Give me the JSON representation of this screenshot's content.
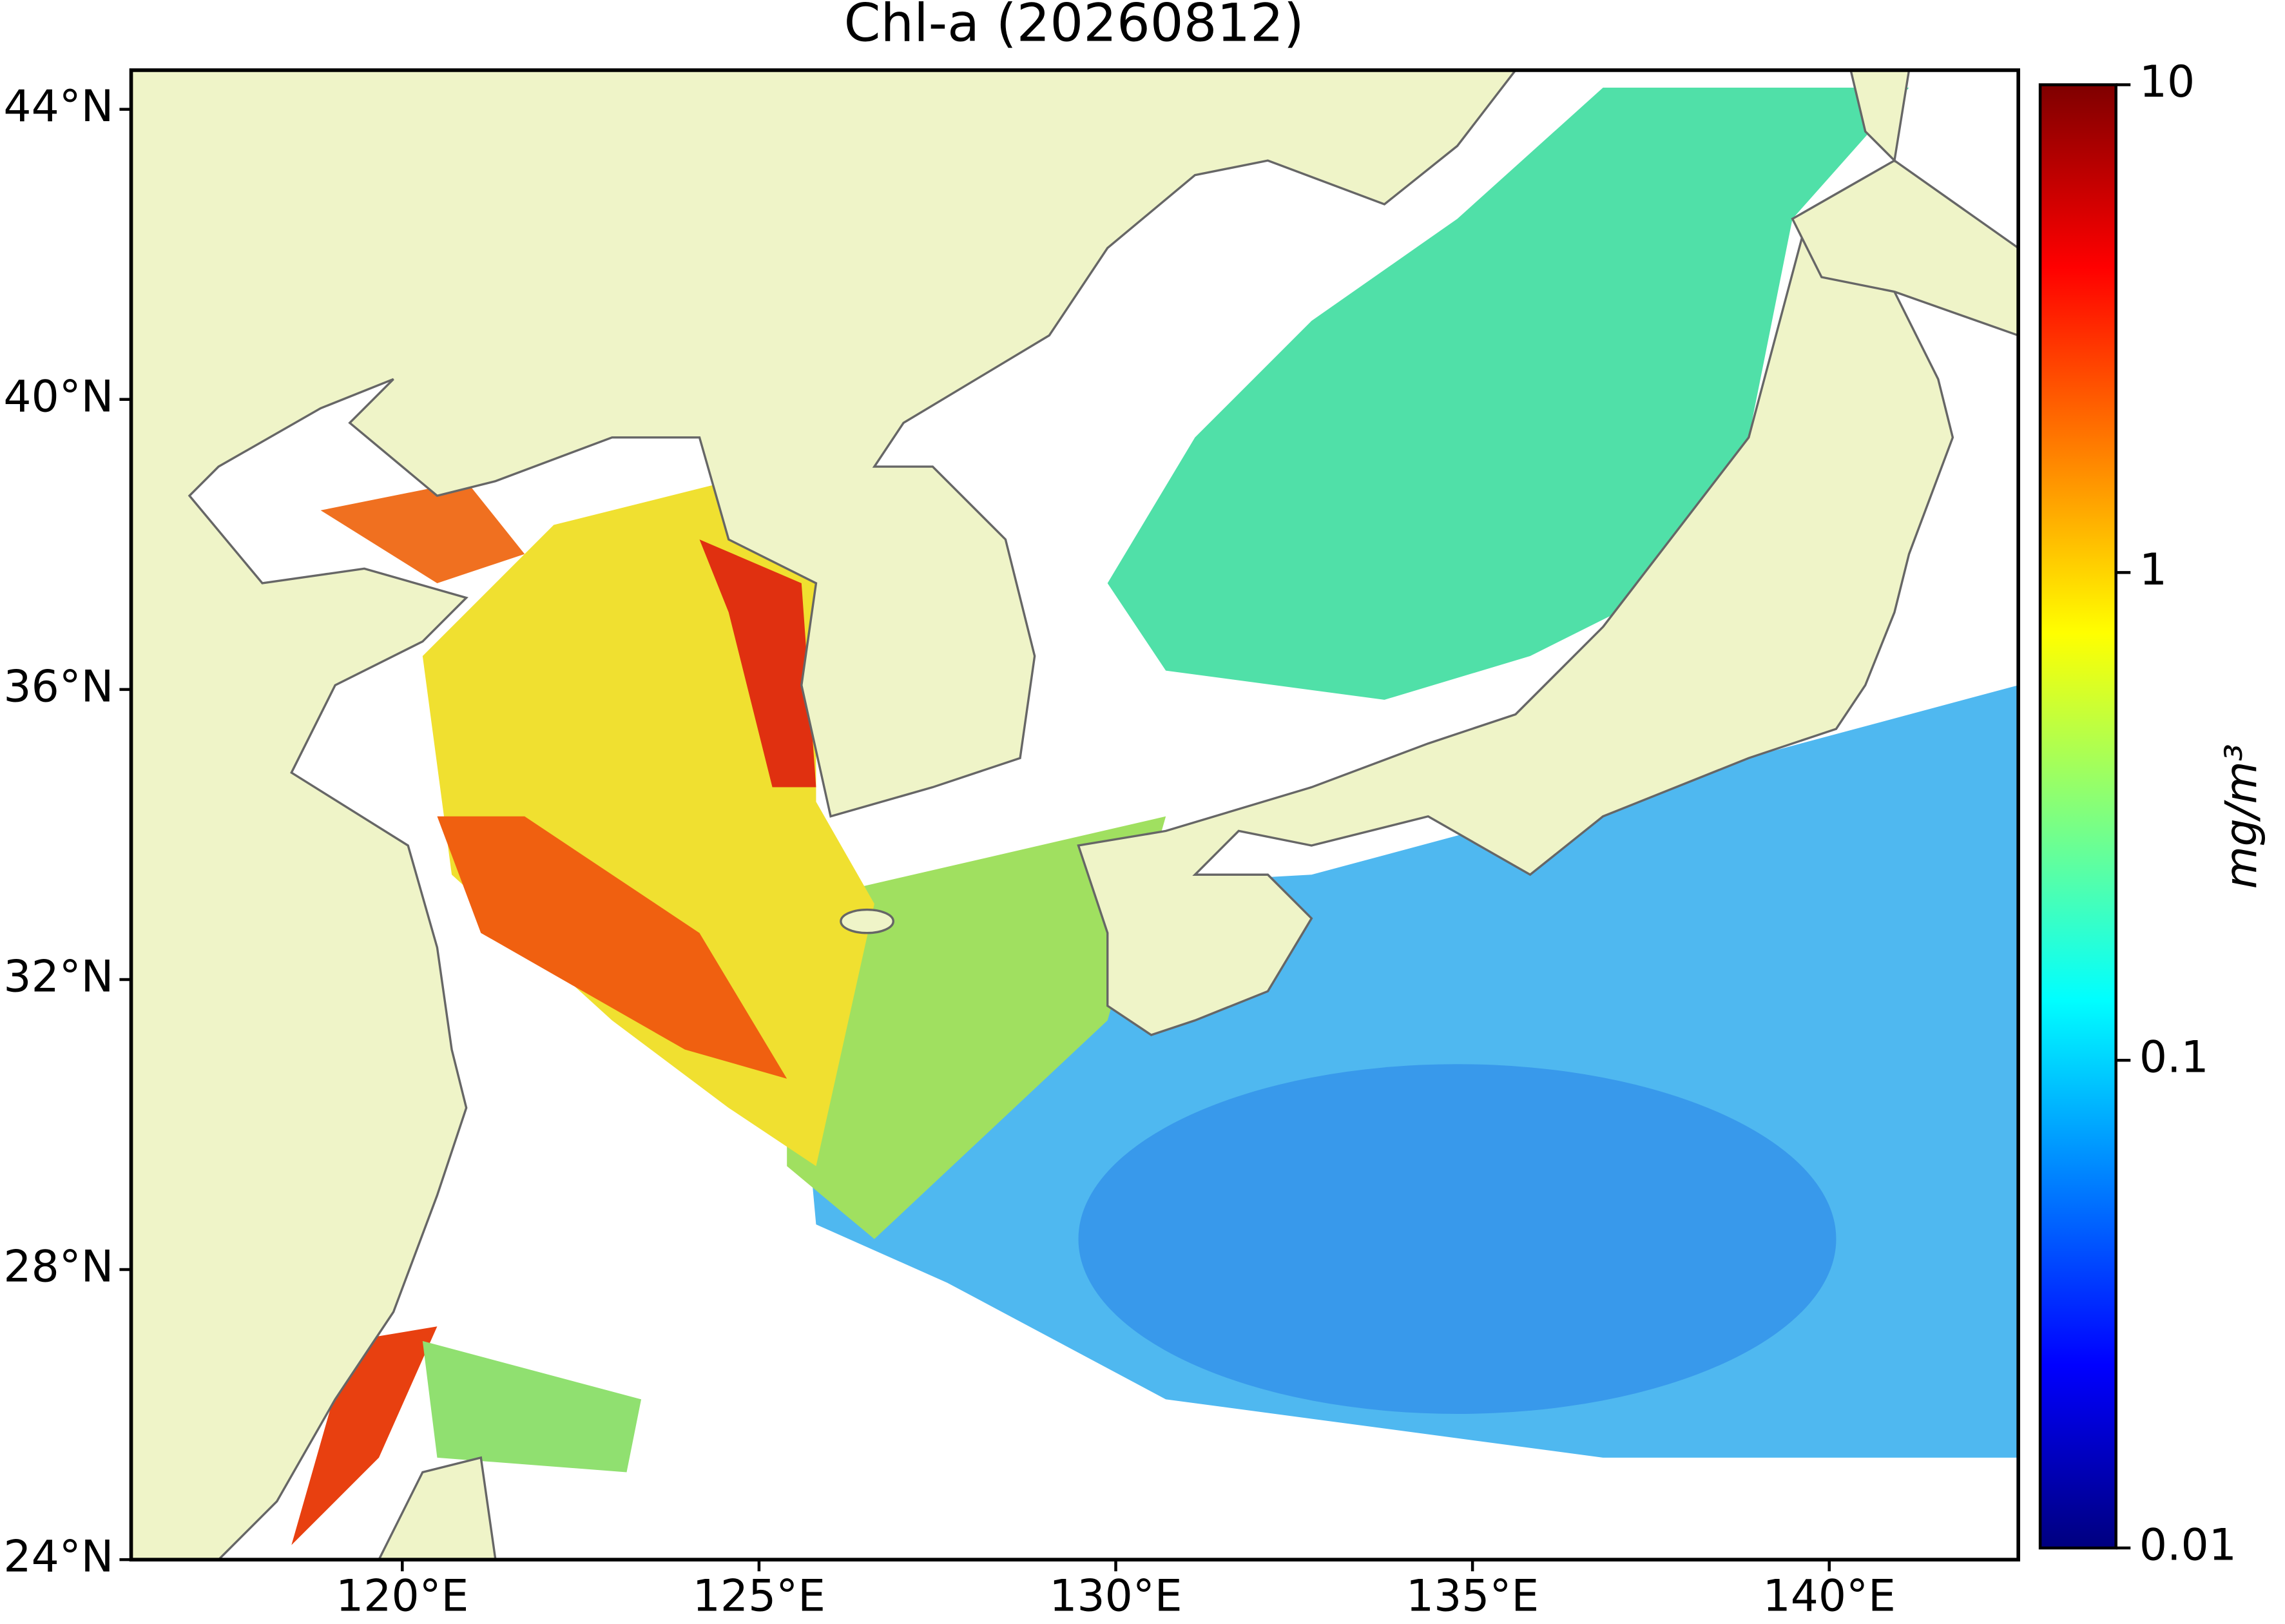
{
  "chart_data": {
    "type": "map",
    "title": "Chl-a (20260812)",
    "xlim": [
      116.2,
      142.65
    ],
    "ylim": [
      24,
      44.54
    ],
    "xticks": [
      {
        "value": 120,
        "label": "120°E"
      },
      {
        "value": 125,
        "label": "125°E"
      },
      {
        "value": 130,
        "label": "130°E"
      },
      {
        "value": 135,
        "label": "135°E"
      },
      {
        "value": 140,
        "label": "140°E"
      }
    ],
    "yticks": [
      {
        "value": 24,
        "label": "24°N"
      },
      {
        "value": 28,
        "label": "28°N"
      },
      {
        "value": 32,
        "label": "32°N"
      },
      {
        "value": 36,
        "label": "36°N"
      },
      {
        "value": 40,
        "label": "40°N"
      },
      {
        "value": 44,
        "label": "44°N"
      }
    ],
    "colorbar": {
      "label": "mg/m³",
      "scale": "log",
      "colormap": "jet",
      "lim": [
        0.01,
        10
      ],
      "ticks": [
        0.01,
        0.1,
        1,
        10
      ]
    }
  }
}
